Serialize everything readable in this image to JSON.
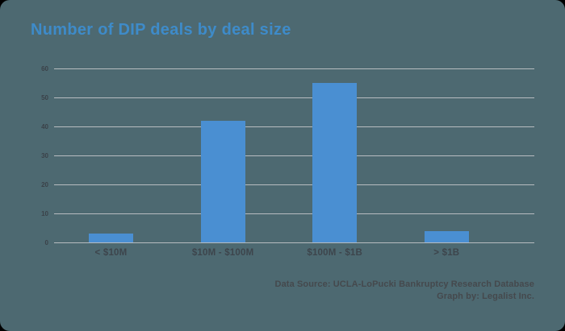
{
  "title": "Number of DIP deals by deal size",
  "chart_data": {
    "type": "bar",
    "title": "Number of DIP deals by deal size",
    "categories": [
      "< $10M",
      "$10M - $100M",
      "$100M - $1B",
      "> $1B"
    ],
    "values": [
      3,
      42,
      55,
      4
    ],
    "xlabel": "",
    "ylabel": "",
    "ylim": [
      0,
      60
    ],
    "yticks": [
      0,
      10,
      20,
      30,
      40,
      50,
      60
    ],
    "grid": true,
    "legend": "none",
    "bar_color": "#4a8fd2"
  },
  "footer": {
    "line1": "Data Source: UCLA-LoPucki Bankruptcy Research Database",
    "line2": "Graph by: Legalist Inc."
  },
  "colors": {
    "outside": "#000000",
    "card_background": "#4d6971",
    "title": "#3e8bc9",
    "bar": "#4a8fd2",
    "gridline": "#b7bcc0",
    "axis_label": "#3d454c",
    "footer_text": "#45494d"
  }
}
